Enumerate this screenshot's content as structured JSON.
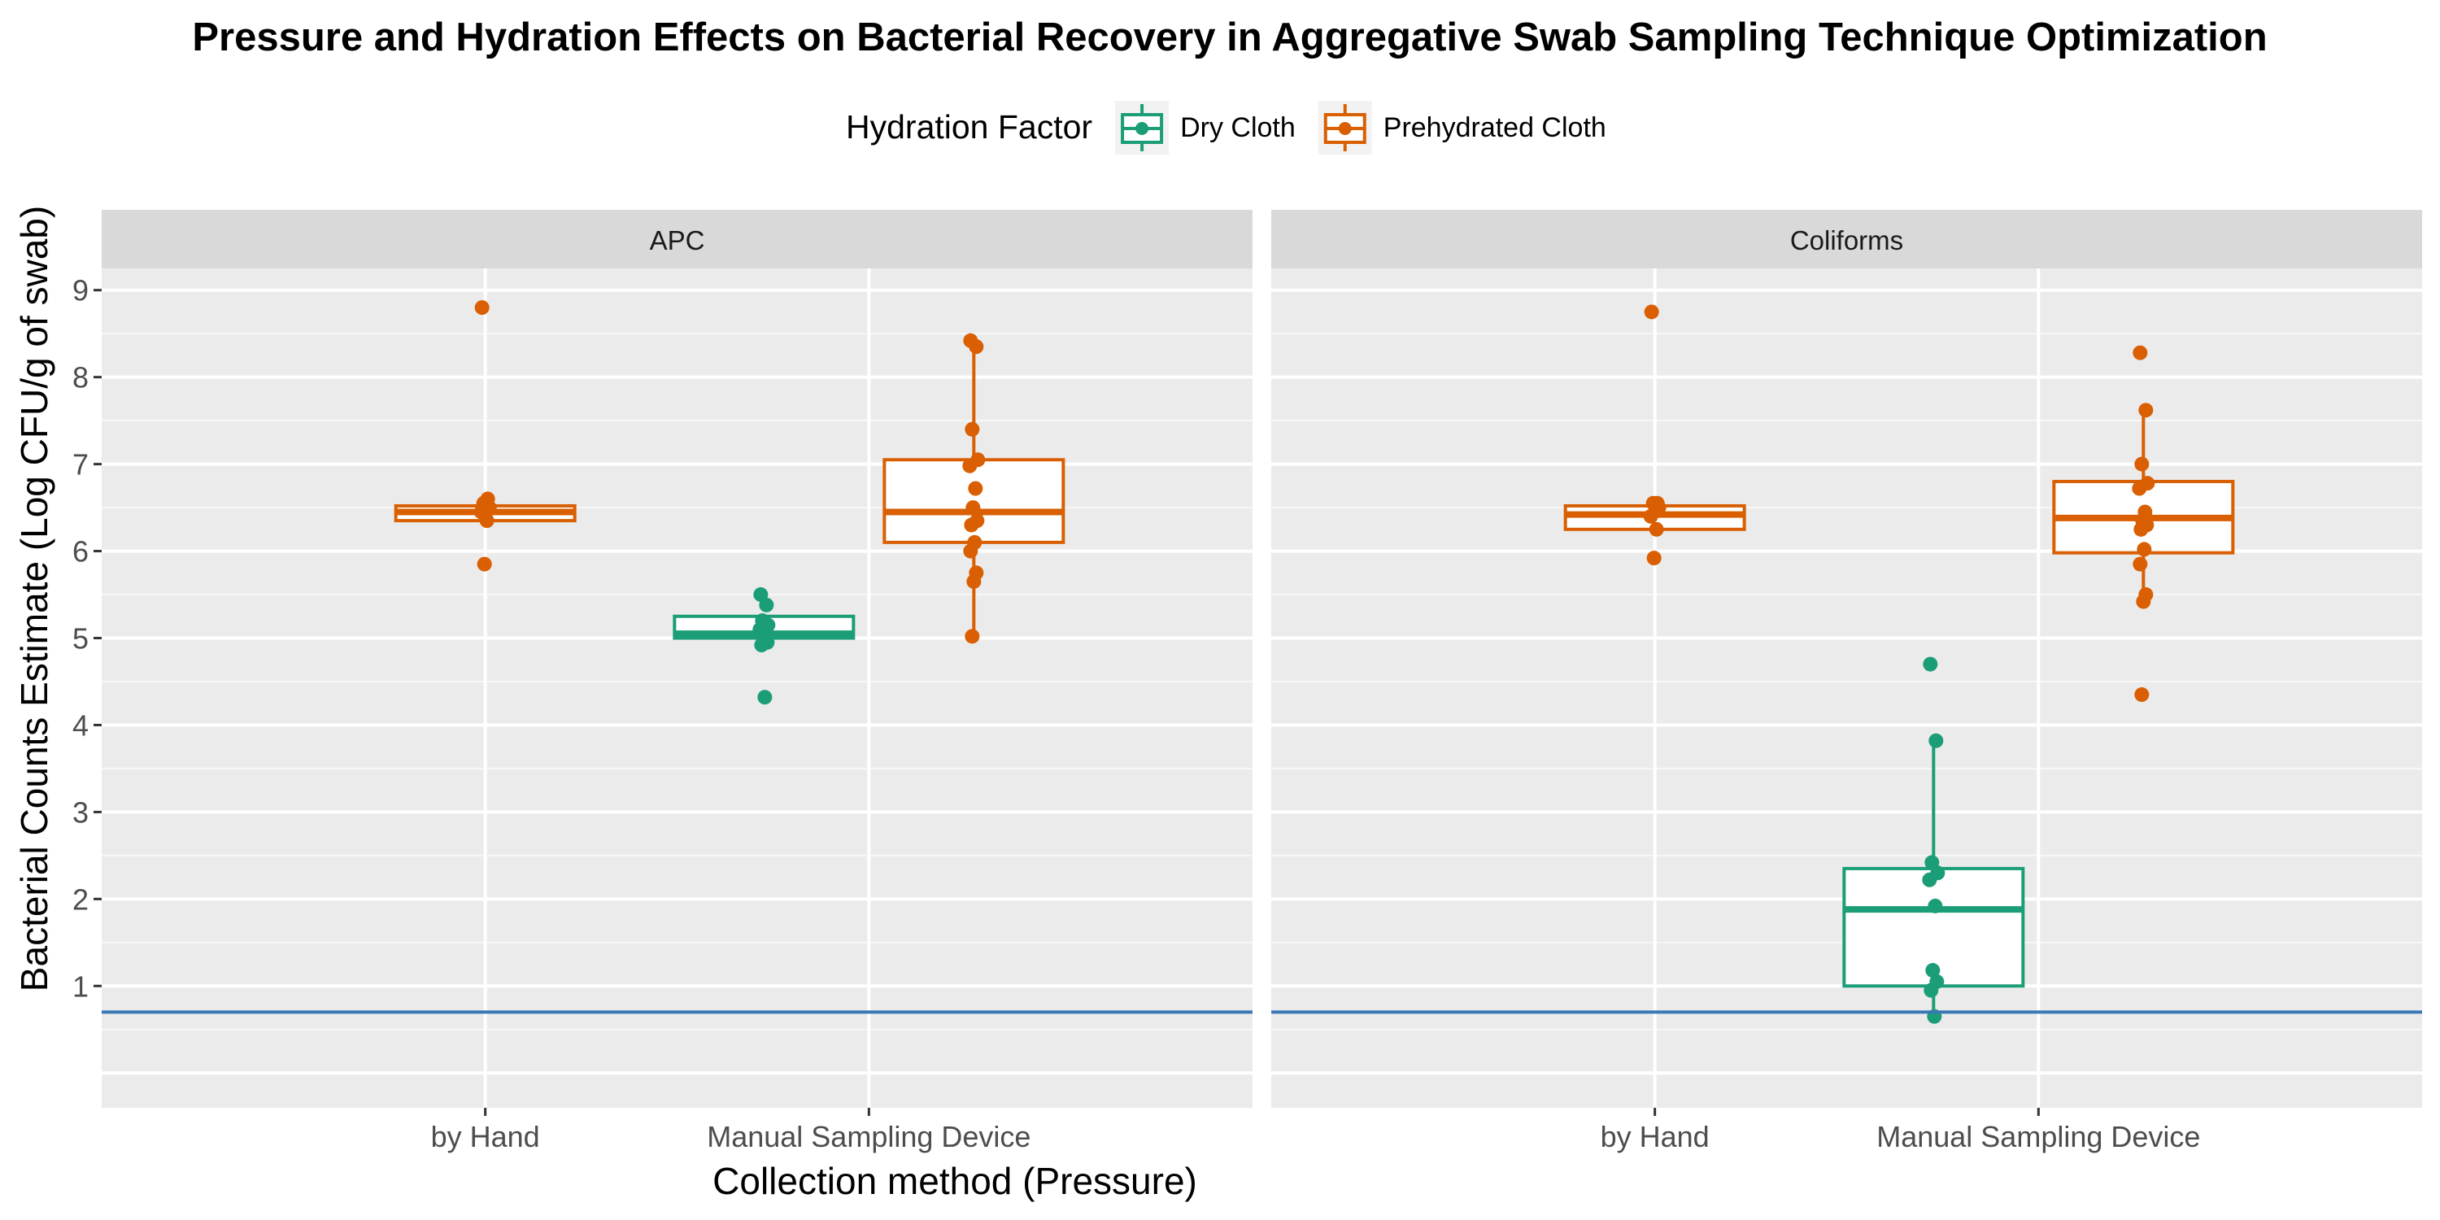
{
  "chart_data": {
    "type": "box",
    "title": "Pressure and Hydration Effects on Bacterial Recovery in Aggregative Swab Sampling Technique Optimization",
    "xlabel": "Collection method (Pressure)",
    "ylabel": "Bacterial Counts Estimate (Log CFU/g of swab)",
    "ylim": [
      -0.4,
      9.25
    ],
    "yticks": [
      1,
      2,
      3,
      4,
      5,
      6,
      7,
      8,
      9
    ],
    "categories": [
      "by Hand",
      "Manual Sampling Device"
    ],
    "reference_line": {
      "y": 0.7,
      "color": "#3a78b5"
    },
    "grid": true,
    "legend": {
      "title": "Hydration Factor",
      "position": "top",
      "items": [
        {
          "label": "Dry Cloth",
          "color": "#1b9e77"
        },
        {
          "label": "Prehydrated Cloth",
          "color": "#d95f02"
        }
      ]
    },
    "panels": [
      {
        "label": "APC",
        "groups": [
          {
            "category": "by Hand",
            "series": "Prehydrated Cloth",
            "box": {
              "q1": 6.35,
              "median": 6.45,
              "q3": 6.52,
              "whisker_low": 6.35,
              "whisker_high": 6.55
            },
            "points": [
              8.8,
              6.6,
              6.55,
              6.5,
              6.45,
              6.35,
              5.85
            ]
          },
          {
            "category": "Manual Sampling Device",
            "series": "Dry Cloth",
            "box": {
              "q1": 5.0,
              "median": 5.05,
              "q3": 5.25,
              "whisker_low": 5.0,
              "whisker_high": 5.25
            },
            "points": [
              5.5,
              5.38,
              5.2,
              5.15,
              5.1,
              5.05,
              5.0,
              4.95,
              4.92,
              4.32
            ]
          },
          {
            "category": "Manual Sampling Device",
            "series": "Prehydrated Cloth",
            "box": {
              "q1": 6.1,
              "median": 6.45,
              "q3": 7.05,
              "whisker_low": 5.0,
              "whisker_high": 8.42
            },
            "points": [
              8.42,
              8.35,
              7.4,
              7.05,
              6.98,
              6.72,
              6.5,
              6.35,
              6.3,
              6.1,
              6.0,
              5.75,
              5.65,
              5.02
            ]
          }
        ]
      },
      {
        "label": "Coliforms",
        "groups": [
          {
            "category": "by Hand",
            "series": "Prehydrated Cloth",
            "box": {
              "q1": 6.25,
              "median": 6.42,
              "q3": 6.52,
              "whisker_low": 6.25,
              "whisker_high": 6.55
            },
            "points": [
              8.75,
              6.55,
              6.55,
              6.5,
              6.4,
              6.25,
              5.92
            ]
          },
          {
            "category": "Manual Sampling Device",
            "series": "Dry Cloth",
            "box": {
              "q1": 1.0,
              "median": 1.88,
              "q3": 2.35,
              "whisker_low": 0.65,
              "whisker_high": 3.82
            },
            "points": [
              4.7,
              3.82,
              2.42,
              2.3,
              2.22,
              1.92,
              1.18,
              1.05,
              0.95,
              0.65
            ]
          },
          {
            "category": "Manual Sampling Device",
            "series": "Prehydrated Cloth",
            "box": {
              "q1": 5.98,
              "median": 6.38,
              "q3": 6.8,
              "whisker_low": 5.42,
              "whisker_high": 7.62
            },
            "points": [
              8.28,
              7.62,
              7.0,
              6.78,
              6.72,
              6.45,
              6.35,
              6.3,
              6.25,
              6.02,
              5.85,
              5.5,
              5.42,
              4.35
            ]
          }
        ]
      }
    ]
  }
}
